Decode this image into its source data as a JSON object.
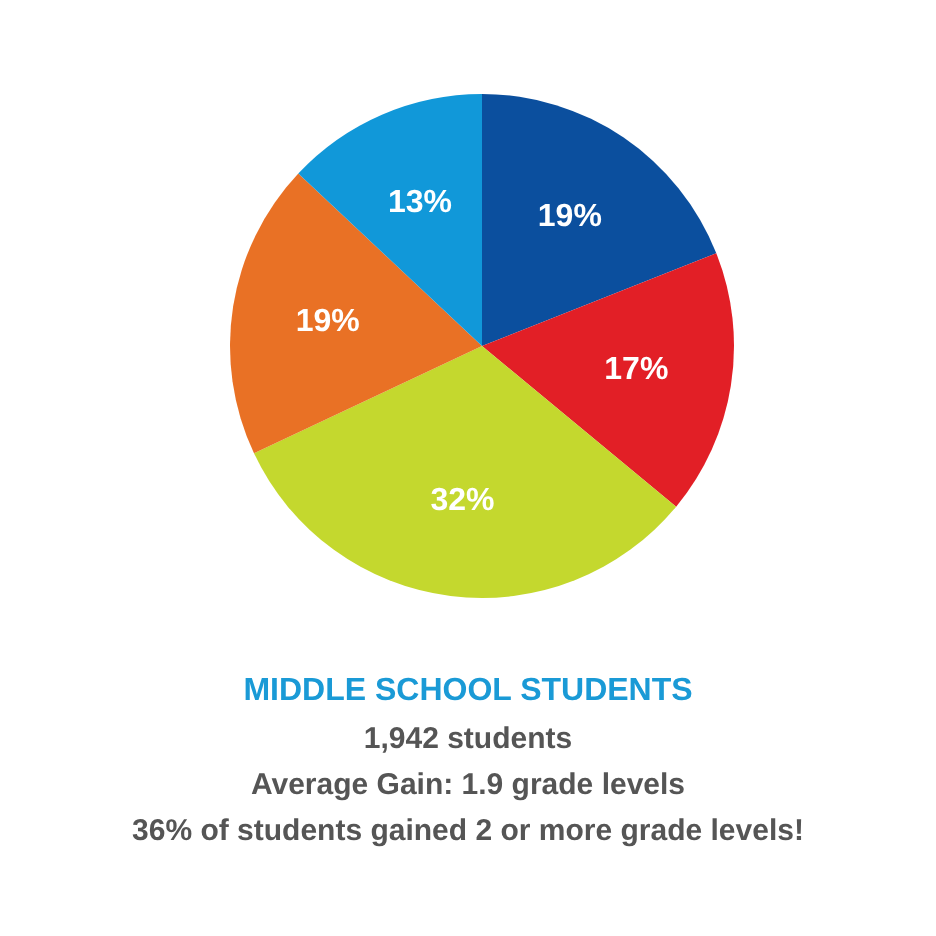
{
  "chart_data": {
    "type": "pie",
    "title": "MIDDLE SCHOOL STUDENTS",
    "annotations": [
      "1,942 students",
      "Average Gain: 1.9 grade levels",
      "36% of students gained 2 or more grade levels!"
    ],
    "categories": [
      null,
      null,
      null,
      null,
      null
    ],
    "values": [
      19,
      17,
      32,
      19,
      13
    ],
    "value_labels": [
      "19%",
      "17%",
      "32%",
      "19%",
      "13%"
    ],
    "colors": [
      "#0b4f9e",
      "#e21f26",
      "#c4d82e",
      "#e97125",
      "#1198d9"
    ],
    "legend": false
  }
}
